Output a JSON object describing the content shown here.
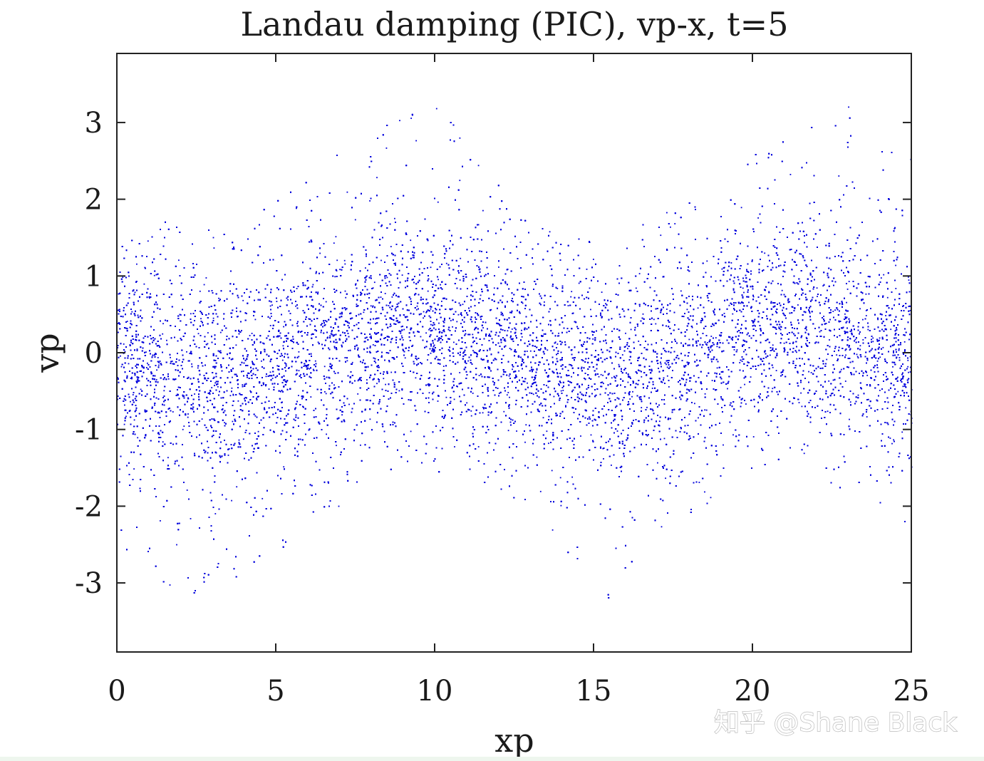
{
  "chart_data": {
    "type": "scatter",
    "title": "Landau damping (PIC), vp-x, t=5",
    "xlabel": "xp",
    "ylabel": "vp",
    "xlim": [
      0,
      25
    ],
    "ylim": [
      -3.9,
      3.9
    ],
    "xticks": [
      0,
      5,
      10,
      15,
      20,
      25
    ],
    "xtick_labels": [
      "0",
      "5",
      "10",
      "15",
      "20",
      "25"
    ],
    "yticks": [
      3,
      2,
      1,
      0,
      -1,
      -2,
      -3
    ],
    "ytick_labels": [
      "3",
      "2",
      "1",
      "0",
      "-1",
      "-2",
      "-3"
    ],
    "grid": false,
    "legend": "none",
    "series": [
      {
        "marker_color": "#0000dd",
        "description_of_distribution": "phase-space particles; dense band centred on vp≈0 (spread ≈ ±1), velocity centroid shifts up near xp≈9 and xp≈21 and down near xp≈3 and xp≈15; sparse tails up to about ±3.8 tilted along the same wave",
        "x": [
          0.5,
          1.5,
          2.5,
          3.5,
          4.5,
          5.5,
          6.5,
          7.5,
          8.5,
          9.5,
          10.5,
          11.5,
          12.5,
          13.5,
          14.5,
          15.5,
          16.5,
          17.5,
          18.5,
          19.5,
          20.5,
          21.5,
          22.5,
          23.5,
          24.5
        ],
        "y_center": [
          -0.1,
          -0.25,
          -0.35,
          -0.35,
          -0.25,
          -0.05,
          0.1,
          0.25,
          0.35,
          0.35,
          0.25,
          0.1,
          -0.05,
          -0.2,
          -0.3,
          -0.35,
          -0.3,
          -0.15,
          0.0,
          0.2,
          0.3,
          0.35,
          0.3,
          0.15,
          0.0
        ],
        "y_upper_tail": [
          1.6,
          1.7,
          1.6,
          1.7,
          1.9,
          2.2,
          2.5,
          2.8,
          3.1,
          3.3,
          3.2,
          2.6,
          1.9,
          1.6,
          1.5,
          1.5,
          1.6,
          1.9,
          2.2,
          2.5,
          2.7,
          3.0,
          3.2,
          3.3,
          2.6
        ],
        "y_lower_tail": [
          -2.6,
          -3.1,
          -3.3,
          -3.0,
          -2.7,
          -2.5,
          -2.2,
          -1.9,
          -1.6,
          -1.5,
          -1.6,
          -1.7,
          -1.9,
          -2.2,
          -2.8,
          -3.3,
          -2.8,
          -2.3,
          -2.0,
          -1.7,
          -1.5,
          -1.5,
          -1.7,
          -2.0,
          -2.4
        ]
      }
    ]
  },
  "watermark": "知乎 @Shane Black"
}
